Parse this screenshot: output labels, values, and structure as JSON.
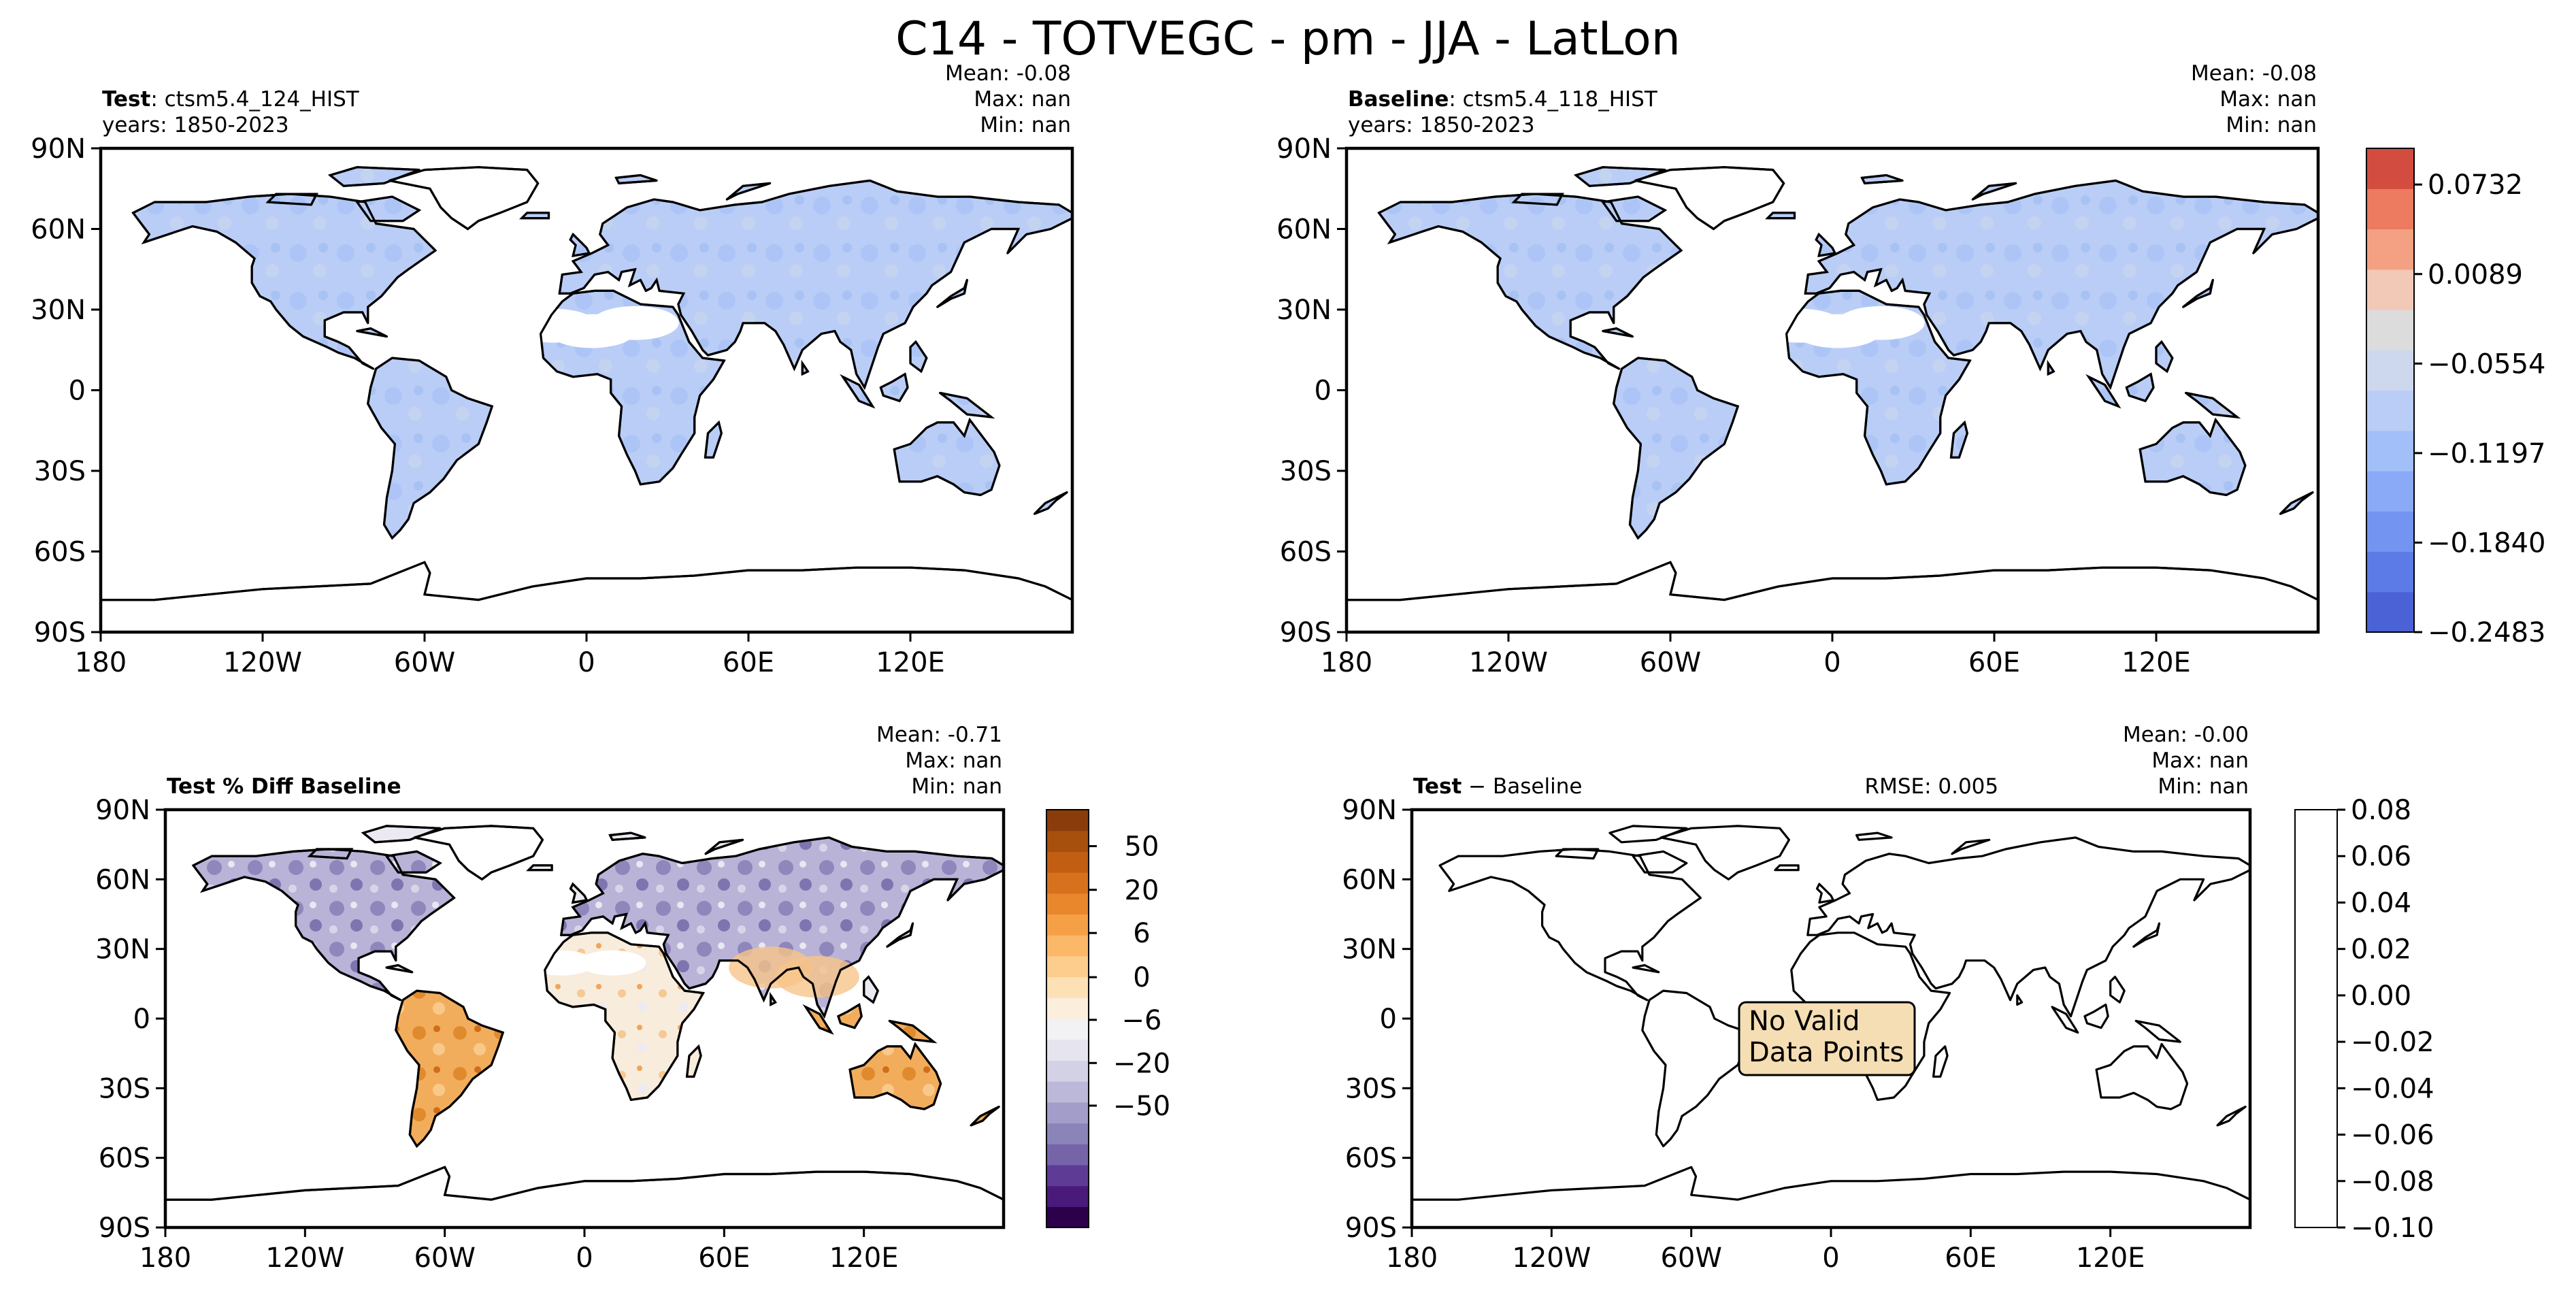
{
  "figure": {
    "title": "C14 - TOTVEGC - pm - JJA - LatLon"
  },
  "chart_data": [
    {
      "type": "heatmap",
      "panel": "test",
      "label_bold": "Test",
      "label_rest": ": ctsm5.4_124_HIST",
      "years": "years: 1850-2023",
      "stats": {
        "mean": "Mean: -0.08",
        "max": "Max:   nan",
        "min": "Min:   nan"
      },
      "xticks": [
        "180",
        "120W",
        "60W",
        "0",
        "60E",
        "120E"
      ],
      "yticks": [
        "90N",
        "60N",
        "30N",
        "0",
        "30S",
        "60S",
        "90S"
      ],
      "xlim": [
        -180,
        180
      ],
      "ylim": [
        -90,
        90
      ],
      "fill": "#b9cdf6"
    },
    {
      "type": "heatmap",
      "panel": "baseline",
      "label_bold": "Baseline",
      "label_rest": ": ctsm5.4_118_HIST",
      "years": "years: 1850-2023",
      "stats": {
        "mean": "Mean: -0.08",
        "max": "Max:   nan",
        "min": "Min:   nan"
      },
      "xticks": [
        "180",
        "120W",
        "60W",
        "0",
        "60E",
        "120E"
      ],
      "yticks": [
        "90N",
        "60N",
        "30N",
        "0",
        "30S",
        "60S",
        "90S"
      ],
      "xlim": [
        -180,
        180
      ],
      "ylim": [
        -90,
        90
      ],
      "fill": "#b9cdf6",
      "colorbar": {
        "ticks": [
          {
            "value": 0.0732,
            "label": "0.0732"
          },
          {
            "value": 0.0089,
            "label": "0.0089"
          },
          {
            "value": -0.0554,
            "label": "−0.0554"
          },
          {
            "value": -0.1197,
            "label": "−0.1197"
          },
          {
            "value": -0.184,
            "label": "−0.1840"
          },
          {
            "value": -0.2483,
            "label": "−0.2483"
          }
        ],
        "range": [
          -0.2483,
          0.0992
        ],
        "colors": [
          "#4a62d6",
          "#5d7be6",
          "#7394f0",
          "#8aaaf7",
          "#a2bff9",
          "#b9cdf6",
          "#cdd8ef",
          "#dcdcdc",
          "#f2c9b6",
          "#f4a083",
          "#ec7b60",
          "#d24c40"
        ]
      }
    },
    {
      "type": "heatmap",
      "panel": "pct-diff",
      "label_bold": "Test % Diff Baseline",
      "stats": {
        "mean": "Mean: -0.71",
        "max": "Max:   nan",
        "min": "Min:   nan"
      },
      "xticks": [
        "180",
        "120W",
        "60W",
        "0",
        "60E",
        "120E"
      ],
      "yticks": [
        "90N",
        "60N",
        "30N",
        "0",
        "30S",
        "60S",
        "90S"
      ],
      "xlim": [
        -180,
        180
      ],
      "ylim": [
        -90,
        90
      ],
      "colorbar": {
        "ticks": [
          "50",
          "20",
          "6",
          "0",
          "−6",
          "−20",
          "−50"
        ],
        "colors": [
          "#2d004b",
          "#4a1a7a",
          "#5e3b95",
          "#7565a8",
          "#8b84b8",
          "#a39dc9",
          "#bcb8d9",
          "#d3d1e6",
          "#e6e5ef",
          "#f2f1f4",
          "#fbeedd",
          "#fee0b6",
          "#fdcd8e",
          "#fbb868",
          "#f5a046",
          "#e8872b",
          "#d8711d",
          "#c25e12",
          "#a74f0d",
          "#8a3d0a"
        ]
      }
    },
    {
      "type": "heatmap",
      "panel": "difference",
      "label_bold": "Test",
      "label_rest": " − Baseline",
      "rmse": "RMSE: 0.005",
      "stats": {
        "mean": "Mean: -0.00",
        "max": "Max:   nan",
        "min": "Min:   nan"
      },
      "xticks": [
        "180",
        "120W",
        "60W",
        "0",
        "60E",
        "120E"
      ],
      "yticks": [
        "90N",
        "60N",
        "30N",
        "0",
        "30S",
        "60S",
        "90S"
      ],
      "xlim": [
        -180,
        180
      ],
      "ylim": [
        -90,
        90
      ],
      "annotation": [
        "No Valid",
        "Data Points"
      ],
      "colorbar": {
        "ticks": [
          "0.08",
          "0.06",
          "0.04",
          "0.02",
          "0.00",
          "−0.02",
          "−0.04",
          "−0.06",
          "−0.08",
          "−0.10"
        ]
      }
    }
  ]
}
